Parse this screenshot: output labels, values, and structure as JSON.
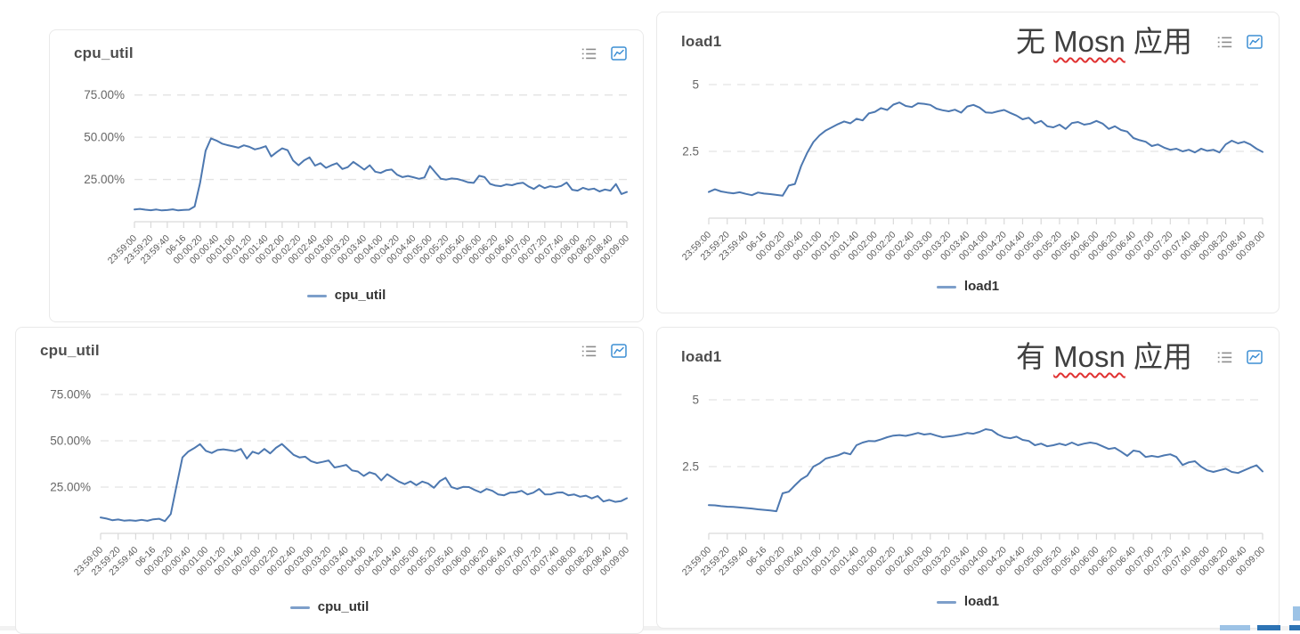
{
  "colors": {
    "line": "#4d78b0",
    "legend_dash": "#7d9fca",
    "grid": "#e3e3e3",
    "axis": "#d9d9d9",
    "tick_label": "#595959",
    "y_label": "#666666",
    "title": "#4d4d4d",
    "list_icon": "#8c8c8c",
    "chart_icon": "#3d8fd4",
    "squiggle": "#e03131",
    "corner_blue": "#2e74b5",
    "corner_light_blue": "#9dc3e6"
  },
  "icons": {
    "list_icon": "list-icon",
    "chart_icon": "line-chart-icon"
  },
  "chart_data": {
    "type": "line",
    "legend_position": "bottom",
    "grid": "dashed-horizontal",
    "categories": [
      "23:59:00",
      "23:59:20",
      "23:59:40",
      "06-16",
      "00:00:20",
      "00:00:40",
      "00:01:00",
      "00:01:20",
      "00:01:40",
      "00:02:00",
      "00:02:20",
      "00:02:40",
      "00:03:00",
      "00:03:20",
      "00:03:40",
      "00:04:00",
      "00:04:20",
      "00:04:40",
      "00:05:00",
      "00:05:20",
      "00:05:40",
      "00:06:00",
      "00:06:20",
      "00:06:40",
      "00:07:00",
      "00:07:20",
      "00:07:40",
      "00:08:00",
      "00:08:20",
      "00:08:40",
      "00:09:00"
    ],
    "charts": [
      {
        "title": "cpu_util",
        "legend": "cpu_util",
        "annotation": null,
        "y_tick_labels": [
          "75.00%",
          "50.00%",
          "25.00%"
        ],
        "y_tick_values": [
          75,
          50,
          25
        ],
        "ylim": [
          0,
          88
        ],
        "values": [
          7.2,
          7.6,
          7.1,
          6.8,
          7.2,
          6.7,
          6.9,
          7.3,
          6.7,
          7.0,
          7.1,
          9.0,
          23.0,
          42.0,
          49.3,
          48.0,
          46.2,
          45.3,
          44.6,
          43.8,
          45.2,
          44.3,
          42.8,
          43.6,
          44.7,
          38.6,
          41.2,
          43.4,
          42.3,
          36.2,
          33.4,
          36.3,
          38.1,
          33.2,
          34.6,
          31.9,
          33.4,
          34.6,
          31.2,
          32.3,
          35.4,
          33.2,
          30.8,
          33.4,
          29.6,
          28.9,
          30.4,
          30.9,
          27.8,
          26.4,
          27.1,
          26.3,
          25.4,
          26.2,
          33.0,
          29.2,
          25.4,
          24.9,
          25.6,
          25.3,
          24.4,
          23.3,
          23.0,
          27.2,
          26.4,
          22.4,
          21.4,
          21.0,
          22.1,
          21.6,
          22.6,
          23.1,
          20.9,
          19.4,
          21.6,
          19.9,
          21.0,
          20.4,
          21.2,
          23.2,
          18.9,
          18.4,
          20.1,
          19.0,
          19.6,
          17.9,
          19.1,
          18.4,
          22.3,
          16.4,
          17.6
        ]
      },
      {
        "title": "load1",
        "legend": "load1",
        "annotation": {
          "prefix": "无 ",
          "word": "Mosn",
          "suffix": " 应用"
        },
        "y_tick_labels": [
          "5",
          "2.5"
        ],
        "y_tick_values": [
          5,
          2.5
        ],
        "ylim": [
          0,
          5.6
        ],
        "values": [
          0.98,
          1.08,
          1.0,
          0.96,
          0.93,
          0.97,
          0.91,
          0.86,
          0.96,
          0.92,
          0.9,
          0.87,
          0.84,
          1.22,
          1.28,
          1.95,
          2.45,
          2.85,
          3.1,
          3.28,
          3.4,
          3.52,
          3.62,
          3.55,
          3.72,
          3.66,
          3.92,
          3.98,
          4.12,
          4.05,
          4.25,
          4.33,
          4.2,
          4.16,
          4.3,
          4.28,
          4.24,
          4.1,
          4.04,
          4.0,
          4.06,
          3.95,
          4.18,
          4.24,
          4.14,
          3.96,
          3.94,
          4.0,
          4.05,
          3.94,
          3.84,
          3.7,
          3.76,
          3.55,
          3.64,
          3.44,
          3.4,
          3.5,
          3.34,
          3.56,
          3.6,
          3.5,
          3.54,
          3.64,
          3.54,
          3.34,
          3.44,
          3.3,
          3.24,
          3.0,
          2.92,
          2.86,
          2.7,
          2.76,
          2.64,
          2.56,
          2.6,
          2.5,
          2.56,
          2.46,
          2.6,
          2.52,
          2.56,
          2.46,
          2.76,
          2.9,
          2.8,
          2.86,
          2.76,
          2.6,
          2.48
        ]
      },
      {
        "title": "cpu_util",
        "legend": "cpu_util",
        "annotation": null,
        "y_tick_labels": [
          "75.00%",
          "50.00%",
          "25.00%"
        ],
        "y_tick_values": [
          75,
          50,
          25
        ],
        "ylim": [
          0,
          88
        ],
        "values": [
          8.6,
          8.0,
          7.1,
          7.5,
          6.9,
          7.1,
          6.8,
          7.3,
          6.8,
          7.6,
          7.9,
          6.6,
          10.5,
          26.0,
          41.0,
          44.2,
          46.0,
          48.2,
          44.6,
          43.4,
          45.0,
          45.4,
          44.9,
          44.4,
          45.6,
          40.4,
          44.1,
          43.0,
          45.6,
          43.2,
          46.2,
          48.3,
          45.4,
          42.4,
          41.0,
          41.4,
          39.0,
          38.0,
          38.6,
          39.4,
          35.6,
          36.2,
          37.0,
          34.0,
          33.4,
          31.0,
          33.0,
          32.0,
          28.6,
          32.0,
          30.0,
          28.0,
          26.6,
          28.1,
          26.0,
          28.0,
          27.0,
          24.6,
          28.2,
          30.0,
          25.0,
          24.0,
          25.1,
          25.0,
          23.4,
          22.1,
          24.0,
          23.0,
          21.0,
          20.6,
          22.0,
          22.1,
          23.0,
          21.0,
          22.0,
          24.0,
          21.0,
          21.1,
          22.0,
          22.1,
          20.6,
          21.0,
          19.8,
          20.4,
          18.9,
          20.2,
          17.2,
          18.1,
          17.0,
          17.4,
          19.0
        ]
      },
      {
        "title": "load1",
        "legend": "load1",
        "annotation": {
          "prefix": "有 ",
          "word": "Mosn",
          "suffix": " 应用"
        },
        "y_tick_labels": [
          "5",
          "2.5"
        ],
        "y_tick_values": [
          5,
          2.5
        ],
        "ylim": [
          0,
          5.6
        ],
        "values": [
          1.06,
          1.05,
          1.02,
          1.0,
          0.99,
          0.97,
          0.95,
          0.93,
          0.9,
          0.88,
          0.86,
          0.83,
          1.5,
          1.56,
          1.8,
          2.02,
          2.16,
          2.5,
          2.62,
          2.8,
          2.86,
          2.92,
          3.02,
          2.96,
          3.3,
          3.4,
          3.46,
          3.45,
          3.52,
          3.6,
          3.66,
          3.68,
          3.65,
          3.7,
          3.76,
          3.7,
          3.73,
          3.66,
          3.6,
          3.63,
          3.66,
          3.7,
          3.76,
          3.73,
          3.8,
          3.9,
          3.86,
          3.7,
          3.6,
          3.56,
          3.62,
          3.5,
          3.46,
          3.3,
          3.36,
          3.26,
          3.3,
          3.36,
          3.3,
          3.4,
          3.3,
          3.36,
          3.4,
          3.36,
          3.26,
          3.16,
          3.2,
          3.06,
          2.9,
          3.1,
          3.06,
          2.86,
          2.9,
          2.86,
          2.92,
          2.96,
          2.86,
          2.56,
          2.66,
          2.7,
          2.5,
          2.36,
          2.3,
          2.36,
          2.42,
          2.3,
          2.26,
          2.36,
          2.46,
          2.55,
          2.32
        ]
      }
    ]
  }
}
